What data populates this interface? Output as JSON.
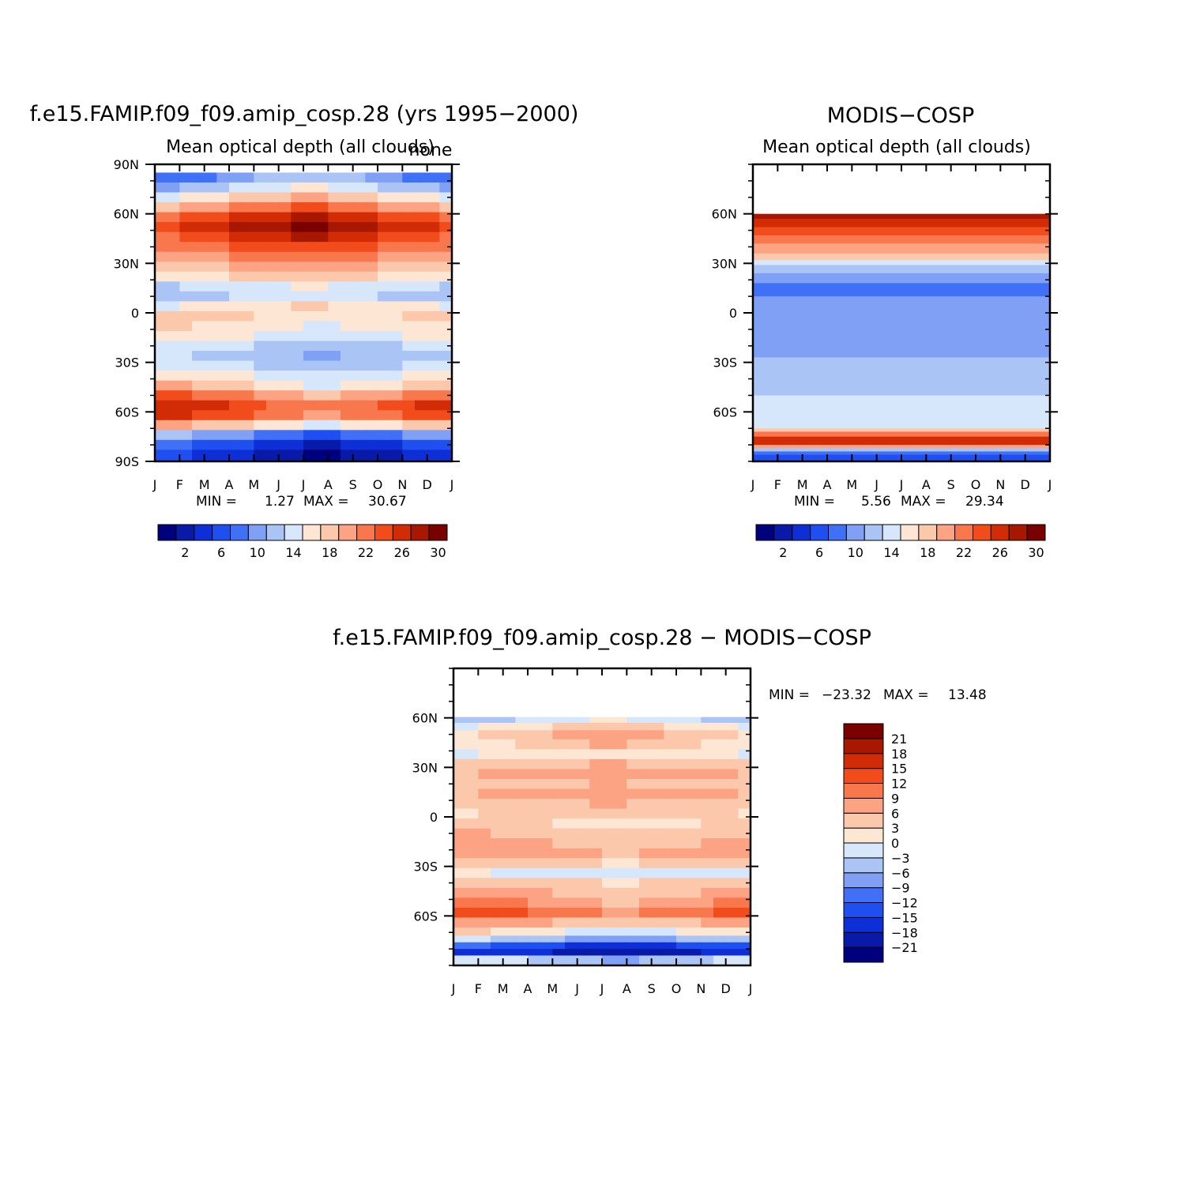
{
  "chart_data": [
    {
      "id": "model",
      "type": "heatmap",
      "title": "f.e15.FAMIP.f09_f09.amip_cosp.28 (yrs 1995−2000)",
      "subtitle": "Mean optical depth (all clouds)",
      "corner_label": "none",
      "x_tick_labels": [
        "J",
        "F",
        "M",
        "A",
        "M",
        "J",
        "J",
        "A",
        "S",
        "O",
        "N",
        "D",
        "J"
      ],
      "y_tick_labels": [
        "90N",
        "60N",
        "30N",
        "0",
        "30S",
        "60S",
        "90S"
      ],
      "y_ticks": [
        90,
        60,
        30,
        0,
        -30,
        -60,
        -90
      ],
      "ylim": [
        -90,
        90
      ],
      "xlim": [
        0,
        12
      ],
      "stats": {
        "min_label": "MIN =",
        "min": "1.27",
        "max_label": "MAX =",
        "max": "30.67"
      },
      "colorbar_labels": [
        "2",
        "6",
        "10",
        "14",
        "18",
        "22",
        "26",
        "30"
      ],
      "zonal_profile": [
        {
          "lat": 88,
          "v": null
        },
        {
          "lat": 82,
          "v": 11
        },
        {
          "lat": 76,
          "v": 14
        },
        {
          "lat": 70,
          "v": 18
        },
        {
          "lat": 64,
          "v": 22
        },
        {
          "lat": 58,
          "v": 26
        },
        {
          "lat": 52,
          "v": 28
        },
        {
          "lat": 46,
          "v": 26
        },
        {
          "lat": 40,
          "v": 24
        },
        {
          "lat": 34,
          "v": 22
        },
        {
          "lat": 28,
          "v": 20
        },
        {
          "lat": 22,
          "v": 18
        },
        {
          "lat": 16,
          "v": 15
        },
        {
          "lat": 10,
          "v": 14
        },
        {
          "lat": 4,
          "v": 17
        },
        {
          "lat": -2,
          "v": 18
        },
        {
          "lat": -8,
          "v": 17
        },
        {
          "lat": -14,
          "v": 16
        },
        {
          "lat": -20,
          "v": 14
        },
        {
          "lat": -26,
          "v": 13
        },
        {
          "lat": -32,
          "v": 14
        },
        {
          "lat": -38,
          "v": 16
        },
        {
          "lat": -44,
          "v": 18
        },
        {
          "lat": -50,
          "v": 22
        },
        {
          "lat": -56,
          "v": 25
        },
        {
          "lat": -62,
          "v": 24
        },
        {
          "lat": -68,
          "v": 18
        },
        {
          "lat": -74,
          "v": 10
        },
        {
          "lat": -80,
          "v": 6
        },
        {
          "lat": -86,
          "v": 4
        }
      ],
      "colormap": [
        "#00007f",
        "#0a1aa8",
        "#0f2fd6",
        "#1f4ff0",
        "#3f70f5",
        "#7fa0f5",
        "#aac4f5",
        "#d6e6fb",
        "#fde6d4",
        "#fcc8ac",
        "#fba383",
        "#f8774c",
        "#f24b1c",
        "#d22c06",
        "#a81801",
        "#7a0000"
      ],
      "cmap_min": 0,
      "cmap_max": 32
    },
    {
      "id": "obs",
      "type": "heatmap",
      "title": "MODIS−COSP",
      "subtitle": "Mean optical depth (all clouds)",
      "x_tick_labels": [
        "J",
        "F",
        "M",
        "A",
        "M",
        "J",
        "J",
        "A",
        "S",
        "O",
        "N",
        "D",
        "J"
      ],
      "y_tick_labels": [
        "60N",
        "30N",
        "0",
        "30S",
        "60S"
      ],
      "y_ticks": [
        60,
        30,
        0,
        -30,
        -60
      ],
      "ylim": [
        -90,
        90
      ],
      "xlim": [
        0,
        12
      ],
      "stats": {
        "min_label": "MIN =",
        "min": "5.56",
        "max_label": "MAX =",
        "max": "29.34"
      },
      "colorbar_labels": [
        "2",
        "6",
        "10",
        "14",
        "18",
        "22",
        "26",
        "30"
      ],
      "zonal_bands": [
        {
          "top": 90,
          "bottom": 60,
          "v": null
        },
        {
          "top": 60,
          "bottom": 57,
          "v": 29
        },
        {
          "top": 57,
          "bottom": 52,
          "v": 26
        },
        {
          "top": 52,
          "bottom": 47,
          "v": 24
        },
        {
          "top": 47,
          "bottom": 42,
          "v": 22
        },
        {
          "top": 42,
          "bottom": 36,
          "v": 20
        },
        {
          "top": 36,
          "bottom": 32,
          "v": 18
        },
        {
          "top": 32,
          "bottom": 29,
          "v": 15
        },
        {
          "top": 29,
          "bottom": 24,
          "v": 12
        },
        {
          "top": 24,
          "bottom": 18,
          "v": 10
        },
        {
          "top": 18,
          "bottom": 10,
          "v": 8
        },
        {
          "top": 10,
          "bottom": 4,
          "v": 10
        },
        {
          "top": 4,
          "bottom": -5,
          "v": 11
        },
        {
          "top": -5,
          "bottom": -12,
          "v": 10
        },
        {
          "top": -12,
          "bottom": -27,
          "v": 10
        },
        {
          "top": -27,
          "bottom": -50,
          "v": 13
        },
        {
          "top": -50,
          "bottom": -70,
          "v": 15
        },
        {
          "top": -70,
          "bottom": -72,
          "v": 18
        },
        {
          "top": -72,
          "bottom": -75,
          "v": 22
        },
        {
          "top": -75,
          "bottom": -80,
          "v": 27
        },
        {
          "top": -80,
          "bottom": -82,
          "v": 20
        },
        {
          "top": -82,
          "bottom": -84,
          "v": 13
        },
        {
          "top": -84,
          "bottom": -86,
          "v": 9
        },
        {
          "top": -86,
          "bottom": -90,
          "v": 6
        }
      ],
      "colormap": [
        "#00007f",
        "#0a1aa8",
        "#0f2fd6",
        "#1f4ff0",
        "#3f70f5",
        "#7fa0f5",
        "#aac4f5",
        "#d6e6fb",
        "#fde6d4",
        "#fcc8ac",
        "#fba383",
        "#f8774c",
        "#f24b1c",
        "#d22c06",
        "#a81801",
        "#7a0000"
      ],
      "cmap_min": 0,
      "cmap_max": 32
    },
    {
      "id": "diff",
      "type": "heatmap",
      "title": "f.e15.FAMIP.f09_f09.amip_cosp.28 − MODIS−COSP",
      "x_tick_labels": [
        "J",
        "F",
        "M",
        "A",
        "M",
        "J",
        "J",
        "A",
        "S",
        "O",
        "N",
        "D",
        "J"
      ],
      "y_tick_labels": [
        "60N",
        "30N",
        "0",
        "30S",
        "60S"
      ],
      "y_ticks": [
        60,
        30,
        0,
        -30,
        -60
      ],
      "ylim": [
        -90,
        90
      ],
      "xlim": [
        0,
        12
      ],
      "stats": {
        "min_label": "MIN =",
        "min": "−23.32",
        "max_label": "MAX =",
        "max": "13.48"
      },
      "colorbar_labels": [
        "21",
        "18",
        "15",
        "12",
        "9",
        "6",
        "3",
        "0",
        "−3",
        "−6",
        "−9",
        "−12",
        "−15",
        "−18",
        "−21"
      ],
      "zonal_profile": [
        {
          "lat": 88,
          "v": null
        },
        {
          "lat": 80,
          "v": null
        },
        {
          "lat": 70,
          "v": null
        },
        {
          "lat": 62,
          "v": null
        },
        {
          "lat": 59,
          "v": -2
        },
        {
          "lat": 55,
          "v": 2
        },
        {
          "lat": 50,
          "v": 5
        },
        {
          "lat": 44,
          "v": 4
        },
        {
          "lat": 38,
          "v": 1
        },
        {
          "lat": 32,
          "v": 5
        },
        {
          "lat": 26,
          "v": 7
        },
        {
          "lat": 20,
          "v": 5
        },
        {
          "lat": 14,
          "v": 7
        },
        {
          "lat": 8,
          "v": 5
        },
        {
          "lat": 2,
          "v": 4
        },
        {
          "lat": -4,
          "v": 3
        },
        {
          "lat": -10,
          "v": 5
        },
        {
          "lat": -16,
          "v": 6
        },
        {
          "lat": -22,
          "v": 7
        },
        {
          "lat": -28,
          "v": 4
        },
        {
          "lat": -34,
          "v": -1
        },
        {
          "lat": -40,
          "v": 4
        },
        {
          "lat": -46,
          "v": 6
        },
        {
          "lat": -52,
          "v": 8
        },
        {
          "lat": -58,
          "v": 11
        },
        {
          "lat": -64,
          "v": 6
        },
        {
          "lat": -70,
          "v": 1
        },
        {
          "lat": -74,
          "v": -5
        },
        {
          "lat": -78,
          "v": -14
        },
        {
          "lat": -82,
          "v": -18
        },
        {
          "lat": -86,
          "v": -4
        }
      ],
      "colormap": [
        "#00007f",
        "#0a1aa8",
        "#0f2fd6",
        "#1f4ff0",
        "#3f70f5",
        "#7fa0f5",
        "#aac4f5",
        "#d6e6fb",
        "#fde6d4",
        "#fcc8ac",
        "#fba383",
        "#f8774c",
        "#f24b1c",
        "#d22c06",
        "#a81801",
        "#7a0000"
      ],
      "cmap_min": -24,
      "cmap_max": 24
    }
  ]
}
